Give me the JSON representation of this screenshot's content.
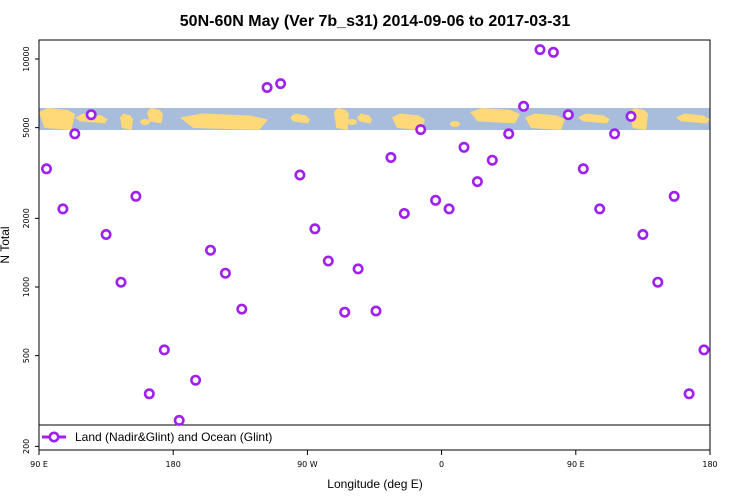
{
  "chart_data": {
    "type": "scatter",
    "title": "50N-60N May (Ver 7b_s31)   2014-09-06 to 2017-03-31",
    "xlabel": "Longitude (deg E)",
    "ylabel": "N Total",
    "x_ticks": [
      {
        "value": 90,
        "label": "90 E"
      },
      {
        "value": 180,
        "label": "180"
      },
      {
        "value": 270,
        "label": "90 W"
      },
      {
        "value": 360,
        "label": "0"
      },
      {
        "value": 450,
        "label": "90 E"
      },
      {
        "value": 540,
        "label": "180"
      }
    ],
    "xlim": [
      90,
      540
    ],
    "y_scale": "log",
    "y_ticks": [
      200,
      500,
      1000,
      2000,
      5000,
      10000
    ],
    "ylim": [
      200,
      12000
    ],
    "grid": false,
    "legend": {
      "placement": "bottom",
      "entries": [
        "Land (Nadir&Glint) and Ocean (Glint)"
      ]
    },
    "series": [
      {
        "color": "#a020f0",
        "marker": "open-circle",
        "x": [
          95,
          106,
          114,
          125,
          135,
          145,
          155,
          164,
          174,
          184,
          195,
          205,
          215,
          226,
          243,
          252,
          265,
          275,
          284,
          295,
          304,
          316,
          326,
          335,
          346,
          356,
          365,
          375,
          384,
          394,
          405,
          415,
          426,
          435,
          445,
          455,
          466,
          476,
          487,
          495,
          505,
          516,
          526,
          536
        ],
        "y": [
          3300,
          2200,
          4700,
          5700,
          1700,
          1050,
          2500,
          340,
          530,
          260,
          390,
          1450,
          1150,
          800,
          7500,
          7800,
          3100,
          1800,
          1300,
          775,
          1200,
          785,
          3700,
          2100,
          4900,
          2400,
          2200,
          4100,
          2900,
          3600,
          4700,
          6200,
          11000,
          10700,
          5700,
          3300,
          2200,
          4700,
          5600,
          1700,
          1050,
          2500,
          340,
          530
        ]
      }
    ],
    "colors": {
      "ocean": "#a8bcdc",
      "land": "#ffd878",
      "points": "#a020f0"
    }
  }
}
